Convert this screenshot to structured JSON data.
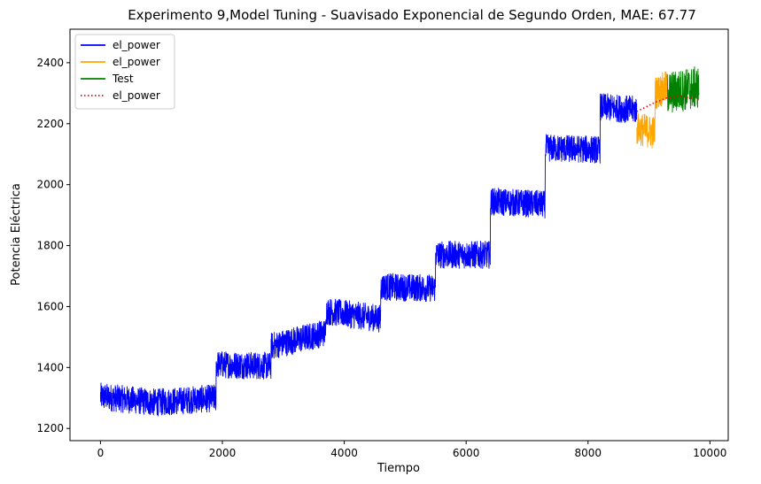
{
  "chart_data": {
    "type": "line",
    "title": "Experimento 9,Model Tuning - Suavisado Exponencial de Segundo Orden, MAE: 67.77",
    "xlabel": "Tiempo",
    "ylabel": "Potencia Eléctrica",
    "xlim": [
      -500,
      10300
    ],
    "ylim": [
      1160,
      2510
    ],
    "x_ticks": [
      0,
      2000,
      4000,
      6000,
      8000,
      10000
    ],
    "x_tick_labels": [
      "0",
      "2000",
      "4000",
      "6000",
      "8000",
      "10000"
    ],
    "y_ticks": [
      1200,
      1400,
      1600,
      1800,
      2000,
      2200,
      2400
    ],
    "y_tick_labels": [
      "1200",
      "1400",
      "1600",
      "1800",
      "2000",
      "2200",
      "2400"
    ],
    "grid": false,
    "legend_position": "top-left",
    "series": [
      {
        "name": "el_power",
        "color": "#0000ff",
        "style": "solid",
        "noisy": true,
        "x": [
          0,
          900,
          1900,
          1900,
          2800,
          2800,
          3700,
          3700,
          4600,
          4600,
          5500,
          5500,
          6400,
          6400,
          7300,
          7300,
          8200,
          8200,
          8800
        ],
        "y": [
          1305,
          1285,
          1300,
          1410,
          1405,
          1470,
          1515,
          1585,
          1560,
          1665,
          1660,
          1770,
          1770,
          1945,
          1935,
          2120,
          2115,
          2255,
          2245
        ],
        "amplitude": 45
      },
      {
        "name": "el_power",
        "color": "#ffa500",
        "style": "solid",
        "noisy": true,
        "x": [
          8800,
          9100,
          9100,
          9300
        ],
        "y": [
          2185,
          2170,
          2300,
          2320
        ],
        "amplitude": 55
      },
      {
        "name": "Test",
        "color": "#008000",
        "style": "solid",
        "noisy": true,
        "x": [
          9300,
          9820
        ],
        "y": [
          2300,
          2320
        ],
        "amplitude": 70
      },
      {
        "name": "el_power",
        "color": "#ff0000",
        "style": "dotted",
        "noisy": false,
        "x": [
          8800,
          9100,
          9300,
          9500,
          9820
        ],
        "y": [
          2240,
          2270,
          2285,
          2290,
          2280
        ]
      }
    ]
  }
}
